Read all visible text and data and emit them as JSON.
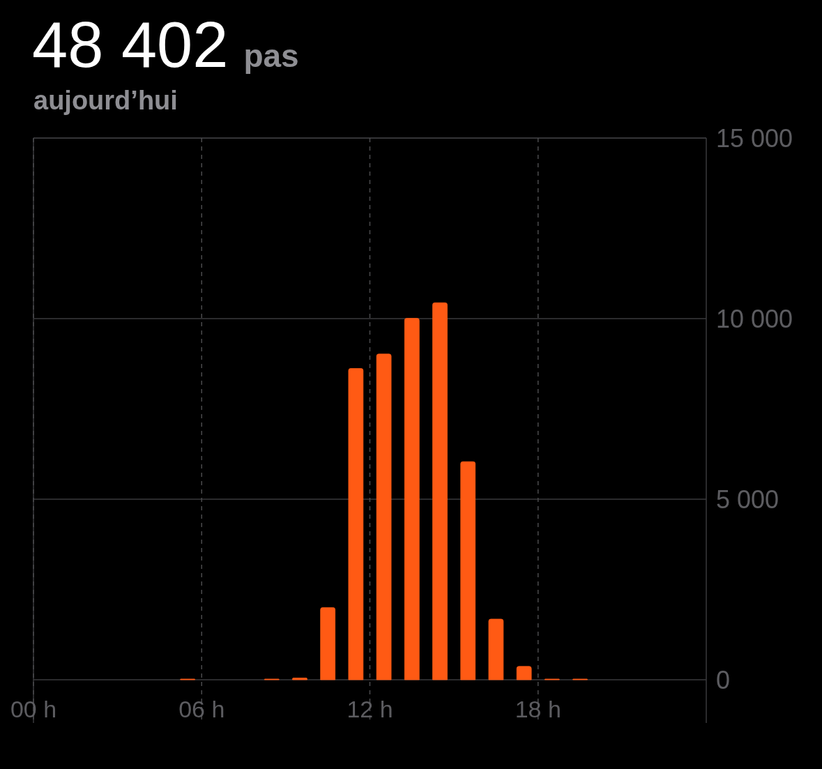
{
  "chart_data": {
    "type": "bar",
    "title": "48 402",
    "subtitle": "aujourd’hui",
    "annotations": [
      "pas"
    ],
    "x": [
      5.5,
      8.5,
      9.5,
      10.5,
      11.5,
      12.5,
      13.5,
      14.5,
      15.5,
      16.5,
      17.5,
      18.5,
      19.5
    ],
    "values": [
      20,
      20,
      50,
      2000,
      8620,
      9020,
      10010,
      10440,
      6040,
      1680,
      370,
      20,
      20
    ],
    "color": "#ff5a14",
    "xlim": [
      0,
      24
    ],
    "xticks": [
      {
        "value": 0,
        "label": "00 h"
      },
      {
        "value": 6,
        "label": "06 h"
      },
      {
        "value": 12,
        "label": "12 h"
      },
      {
        "value": 18,
        "label": "18 h"
      }
    ],
    "ylim": [
      0,
      15000
    ],
    "yticks": [
      {
        "value": 0,
        "label": "0"
      },
      {
        "value": 5000,
        "label": "5 000"
      },
      {
        "value": 10000,
        "label": "10 000"
      },
      {
        "value": 15000,
        "label": "15 000"
      }
    ],
    "grid": true
  }
}
